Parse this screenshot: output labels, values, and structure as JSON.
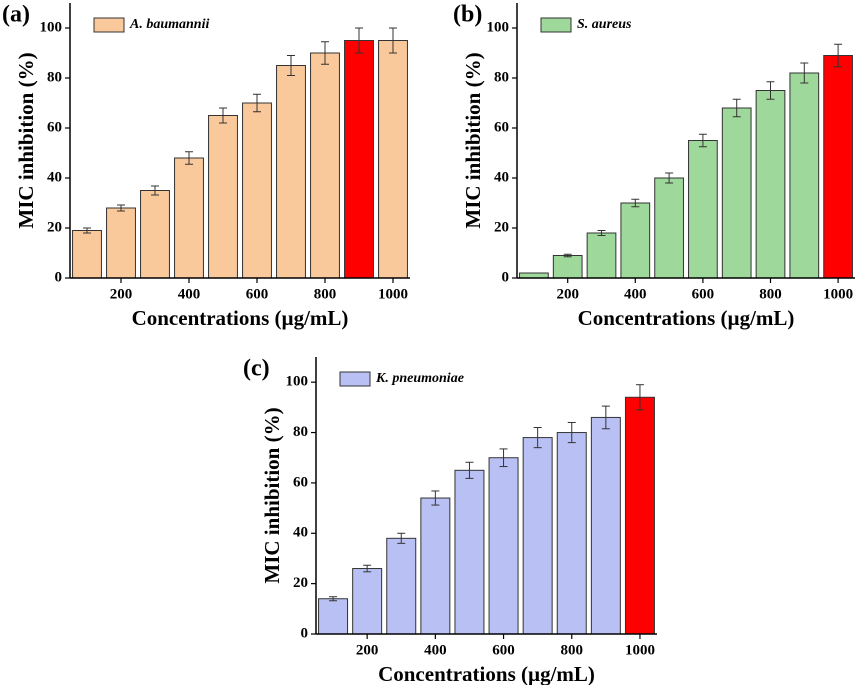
{
  "chart_data": [
    {
      "type": "bar",
      "panel_label": "(a)",
      "xlabel": "Concentrations (µg/mL)",
      "ylabel": "MIC inhibition (%)",
      "x": [
        100,
        200,
        300,
        400,
        500,
        600,
        700,
        800,
        900,
        1000
      ],
      "xlim": [
        50,
        1050
      ],
      "xticks": [
        200,
        400,
        600,
        800,
        1000
      ],
      "ylim": [
        0,
        110
      ],
      "yticks": [
        0,
        20,
        40,
        60,
        80,
        100
      ],
      "series": [
        {
          "name": "A. baumannii",
          "color": "#F9C89B",
          "colors": [
            "#F9C89B",
            "#F9C89B",
            "#F9C89B",
            "#F9C89B",
            "#F9C89B",
            "#F9C89B",
            "#F9C89B",
            "#F9C89B",
            "#FF0000",
            "#F9C89B"
          ],
          "values": [
            19,
            28,
            35,
            48,
            65,
            70,
            85,
            90,
            95,
            95
          ],
          "errors": [
            1,
            1.2,
            1.8,
            2.5,
            3,
            3.5,
            4,
            4.5,
            5,
            5
          ]
        }
      ]
    },
    {
      "type": "bar",
      "panel_label": "(b)",
      "xlabel": "Concentrations (µg/mL)",
      "ylabel": "MIC inhibition (%)",
      "x": [
        100,
        200,
        300,
        400,
        500,
        600,
        700,
        800,
        900,
        1000
      ],
      "xlim": [
        50,
        1050
      ],
      "xticks": [
        200,
        400,
        600,
        800,
        1000
      ],
      "ylim": [
        0,
        110
      ],
      "yticks": [
        0,
        20,
        40,
        60,
        80,
        100
      ],
      "series": [
        {
          "name": "S. aureus",
          "color": "#9ED89A",
          "colors": [
            "#9ED89A",
            "#9ED89A",
            "#9ED89A",
            "#9ED89A",
            "#9ED89A",
            "#9ED89A",
            "#9ED89A",
            "#9ED89A",
            "#9ED89A",
            "#FF0000"
          ],
          "values": [
            2,
            9,
            18,
            30,
            40,
            55,
            68,
            75,
            82,
            89
          ],
          "errors": [
            0,
            0.5,
            1,
            1.5,
            2,
            2.5,
            3.5,
            3.5,
            4,
            4.5
          ]
        }
      ]
    },
    {
      "type": "bar",
      "panel_label": "(c)",
      "xlabel": "Concentrations (µg/mL)",
      "ylabel": "MIC inhibition (%)",
      "x": [
        100,
        200,
        300,
        400,
        500,
        600,
        700,
        800,
        900,
        1000
      ],
      "xlim": [
        50,
        1050
      ],
      "xticks": [
        200,
        400,
        600,
        800,
        1000
      ],
      "ylim": [
        0,
        110
      ],
      "yticks": [
        0,
        20,
        40,
        60,
        80,
        100
      ],
      "series": [
        {
          "name": "K. pneumoniae",
          "color": "#B9C0F4",
          "colors": [
            "#B9C0F4",
            "#B9C0F4",
            "#B9C0F4",
            "#B9C0F4",
            "#B9C0F4",
            "#B9C0F4",
            "#B9C0F4",
            "#B9C0F4",
            "#B9C0F4",
            "#FF0000"
          ],
          "values": [
            14,
            26,
            38,
            54,
            65,
            70,
            78,
            80,
            86,
            94
          ],
          "errors": [
            0.8,
            1.3,
            2,
            2.8,
            3.2,
            3.5,
            4,
            4,
            4.5,
            5
          ]
        }
      ]
    }
  ]
}
